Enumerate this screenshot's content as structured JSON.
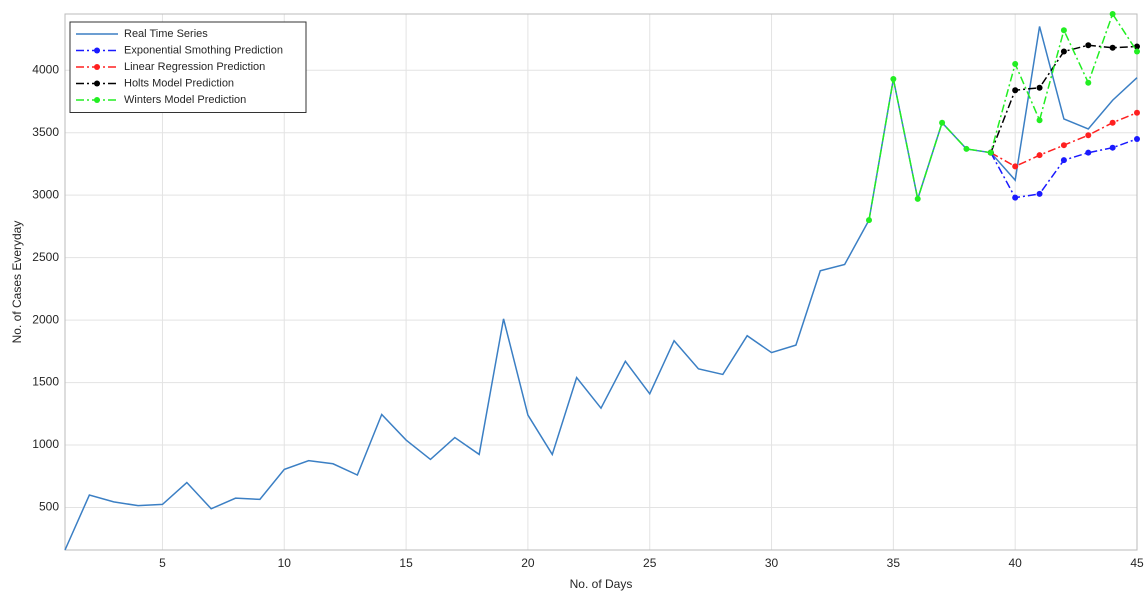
{
  "chart_data": {
    "type": "line",
    "xlabel": "No. of Days",
    "ylabel": "No. of Cases Everyday",
    "xlim": [
      1,
      45
    ],
    "ylim": [
      160,
      4450
    ],
    "xticks": [
      5,
      10,
      15,
      20,
      25,
      30,
      35,
      40,
      45
    ],
    "yticks": [
      500,
      1000,
      1500,
      2000,
      2500,
      3000,
      3500,
      4000
    ],
    "grid": true,
    "legend": "upper left",
    "series": [
      {
        "name": "Real Time Series",
        "color": "#3b7fc4",
        "style": "solid",
        "x": [
          1,
          2,
          3,
          4,
          5,
          6,
          7,
          8,
          9,
          10,
          11,
          12,
          13,
          14,
          15,
          16,
          17,
          18,
          19,
          20,
          21,
          22,
          23,
          24,
          25,
          26,
          27,
          28,
          29,
          30,
          31,
          32,
          33,
          34,
          35,
          36,
          37,
          38,
          39,
          40,
          41,
          42,
          43,
          44,
          45
        ],
        "values": [
          160,
          600,
          545,
          515,
          525,
          700,
          490,
          575,
          565,
          805,
          875,
          850,
          760,
          1245,
          1040,
          885,
          1060,
          925,
          2010,
          1240,
          925,
          1540,
          1295,
          1670,
          1410,
          1835,
          1610,
          1565,
          1875,
          1740,
          1800,
          2395,
          2445,
          2800,
          3930,
          2970,
          3580,
          3370,
          3340,
          3120,
          4350,
          3610,
          3530,
          3760,
          3940
        ]
      },
      {
        "name": "Exponential Smothing Prediction",
        "color": "#1a1aff",
        "style": "dashdot",
        "x": [
          39,
          40,
          41,
          42,
          43,
          44,
          45
        ],
        "values": [
          3340,
          2980,
          3010,
          3280,
          3340,
          3380,
          3450
        ]
      },
      {
        "name": "Linear Regression Prediction",
        "color": "#ff2020",
        "style": "dashdot",
        "x": [
          39,
          40,
          41,
          42,
          43,
          44,
          45
        ],
        "values": [
          3340,
          3230,
          3320,
          3400,
          3480,
          3580,
          3660
        ]
      },
      {
        "name": "Holts Model Prediction",
        "color": "#000000",
        "style": "dashdot",
        "x": [
          39,
          40,
          41,
          42,
          43,
          44,
          45
        ],
        "values": [
          3340,
          3840,
          3860,
          4150,
          4200,
          4180,
          4190
        ]
      },
      {
        "name": "Winters Model Prediction",
        "color": "#22ee22",
        "style": "dashdot",
        "x": [
          34,
          35,
          36,
          37,
          38,
          39,
          40,
          41,
          42,
          43,
          44,
          45
        ],
        "values": [
          2800,
          3930,
          2970,
          3580,
          3370,
          3340,
          4050,
          3600,
          4320,
          3900,
          4450,
          4150
        ]
      }
    ]
  }
}
